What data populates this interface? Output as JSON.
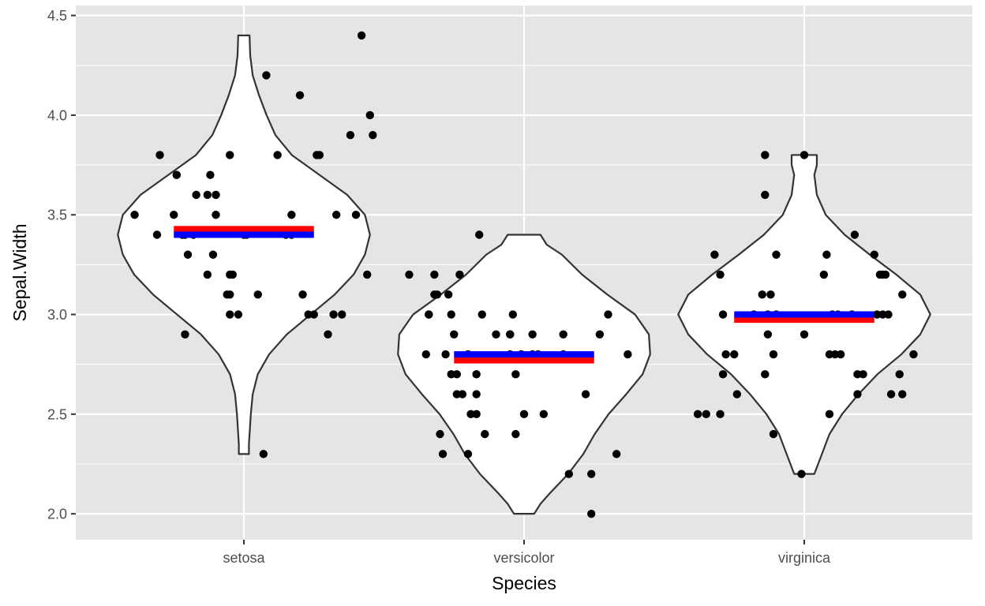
{
  "chart_data": {
    "type": "violin",
    "xlabel": "Species",
    "ylabel": "Sepal.Width",
    "categories": [
      "setosa",
      "versicolor",
      "virginica"
    ],
    "ylim": [
      1.87,
      4.55
    ],
    "yticks": [
      2.0,
      2.5,
      3.0,
      3.5,
      4.0,
      4.5
    ],
    "grid": true,
    "colors": {
      "panel": "#e5e5e5",
      "grid": "#ffffff",
      "violin_fill": "#ffffff",
      "violin_stroke": "#333333",
      "points": "#000000",
      "mean_line": "#ff0000",
      "median_line": "#0000ff"
    },
    "summary": {
      "mean": [
        3.428,
        2.77,
        2.974
      ],
      "median": [
        3.4,
        2.8,
        3.0
      ]
    },
    "violins": [
      {
        "category": "setosa",
        "range": [
          2.3,
          4.4
        ],
        "profile": [
          [
            2.3,
            0.04
          ],
          [
            2.35,
            0.04
          ],
          [
            2.4,
            0.045
          ],
          [
            2.5,
            0.055
          ],
          [
            2.6,
            0.07
          ],
          [
            2.7,
            0.11
          ],
          [
            2.8,
            0.2
          ],
          [
            2.9,
            0.34
          ],
          [
            3.0,
            0.53
          ],
          [
            3.1,
            0.72
          ],
          [
            3.2,
            0.87
          ],
          [
            3.3,
            0.96
          ],
          [
            3.4,
            1.0
          ],
          [
            3.5,
            0.96
          ],
          [
            3.6,
            0.82
          ],
          [
            3.7,
            0.6
          ],
          [
            3.8,
            0.38
          ],
          [
            3.9,
            0.25
          ],
          [
            4.0,
            0.18
          ],
          [
            4.1,
            0.12
          ],
          [
            4.2,
            0.07
          ],
          [
            4.3,
            0.05
          ],
          [
            4.4,
            0.045
          ]
        ]
      },
      {
        "category": "versicolor",
        "range": [
          2.0,
          3.4
        ],
        "profile": [
          [
            2.0,
            0.08
          ],
          [
            2.05,
            0.13
          ],
          [
            2.1,
            0.2
          ],
          [
            2.2,
            0.35
          ],
          [
            2.3,
            0.47
          ],
          [
            2.4,
            0.56
          ],
          [
            2.5,
            0.67
          ],
          [
            2.6,
            0.81
          ],
          [
            2.7,
            0.94
          ],
          [
            2.8,
            1.0
          ],
          [
            2.9,
            0.99
          ],
          [
            3.0,
            0.88
          ],
          [
            3.1,
            0.66
          ],
          [
            3.2,
            0.46
          ],
          [
            3.3,
            0.3
          ],
          [
            3.35,
            0.18
          ],
          [
            3.4,
            0.13
          ]
        ]
      },
      {
        "category": "virginica",
        "range": [
          2.2,
          3.8
        ],
        "profile": [
          [
            2.2,
            0.08
          ],
          [
            2.25,
            0.11
          ],
          [
            2.3,
            0.14
          ],
          [
            2.4,
            0.2
          ],
          [
            2.5,
            0.3
          ],
          [
            2.6,
            0.43
          ],
          [
            2.7,
            0.58
          ],
          [
            2.8,
            0.77
          ],
          [
            2.9,
            0.92
          ],
          [
            3.0,
            1.0
          ],
          [
            3.1,
            0.92
          ],
          [
            3.2,
            0.73
          ],
          [
            3.3,
            0.52
          ],
          [
            3.4,
            0.32
          ],
          [
            3.5,
            0.17
          ],
          [
            3.6,
            0.1
          ],
          [
            3.7,
            0.08
          ],
          [
            3.75,
            0.1
          ],
          [
            3.8,
            0.1
          ]
        ]
      }
    ],
    "points": [
      {
        "category": "setosa",
        "jitter": [
          -0.39,
          -0.31,
          -0.3,
          -0.25,
          -0.24,
          -0.24,
          -0.22,
          -0.21,
          -0.21,
          -0.2,
          -0.18,
          -0.17,
          -0.13,
          -0.13,
          -0.12,
          -0.11,
          -0.1,
          -0.1,
          -0.06,
          -0.05,
          -0.05,
          -0.05,
          -0.05,
          -0.04,
          -0.02,
          0.0,
          0.01,
          0.05,
          0.07,
          0.08,
          0.17,
          0.17,
          0.2,
          0.21,
          0.23,
          0.26,
          0.27,
          0.32,
          0.33,
          0.35,
          0.4,
          0.42,
          0.44,
          0.45,
          0.46,
          0.38,
          0.3,
          0.15,
          0.12,
          0.25
        ],
        "y": [
          3.5,
          3.4,
          3.8,
          3.5,
          3.7,
          3.7,
          3.4,
          2.9,
          3.4,
          3.3,
          3.4,
          3.6,
          3.2,
          3.6,
          3.7,
          3.3,
          3.6,
          3.5,
          3.1,
          3.0,
          3.2,
          3.1,
          3.8,
          3.2,
          3.0,
          3.4,
          3.4,
          3.1,
          2.3,
          4.2,
          3.4,
          3.5,
          4.1,
          3.1,
          3.0,
          3.8,
          3.8,
          3.0,
          3.5,
          3.0,
          3.5,
          4.4,
          3.2,
          4.0,
          3.9,
          3.9,
          2.9,
          3.4,
          3.8,
          3.0
        ]
      },
      {
        "category": "versicolor",
        "jitter": [
          -0.41,
          -0.35,
          -0.34,
          -0.34,
          -0.32,
          -0.32,
          -0.31,
          -0.3,
          -0.29,
          -0.28,
          -0.27,
          -0.26,
          -0.26,
          -0.25,
          -0.24,
          -0.24,
          -0.23,
          -0.22,
          -0.2,
          -0.2,
          -0.19,
          -0.17,
          -0.17,
          -0.17,
          -0.16,
          -0.15,
          -0.14,
          -0.1,
          -0.05,
          -0.05,
          -0.05,
          -0.04,
          -0.03,
          -0.03,
          -0.01,
          0.0,
          0.03,
          0.03,
          0.05,
          0.07,
          0.14,
          0.14,
          0.16,
          0.22,
          0.24,
          0.24,
          0.27,
          0.3,
          0.33,
          0.37
        ],
        "y": [
          3.2,
          2.8,
          3.0,
          3.0,
          3.2,
          3.1,
          3.1,
          2.4,
          2.3,
          2.8,
          3.1,
          2.7,
          3.0,
          2.9,
          2.6,
          2.7,
          3.2,
          2.6,
          2.3,
          2.8,
          2.5,
          2.6,
          2.5,
          2.7,
          3.4,
          3.0,
          2.4,
          2.9,
          2.9,
          2.8,
          2.9,
          3.0,
          2.4,
          2.7,
          2.8,
          2.5,
          2.8,
          2.9,
          2.8,
          2.5,
          2.8,
          2.9,
          2.2,
          2.6,
          2.2,
          2.0,
          2.9,
          3.0,
          2.3,
          2.8
        ]
      },
      {
        "category": "virginica",
        "jitter": [
          -0.35,
          -0.38,
          -0.32,
          -0.3,
          -0.3,
          -0.29,
          -0.29,
          -0.28,
          -0.25,
          -0.24,
          -0.18,
          -0.15,
          -0.14,
          -0.14,
          -0.14,
          -0.13,
          -0.13,
          -0.12,
          -0.11,
          -0.1,
          -0.11,
          -0.1,
          -0.01,
          0.0,
          0.08,
          0.09,
          0.09,
          0.1,
          0.11,
          0.12,
          0.13,
          0.18,
          0.19,
          0.19,
          0.21,
          0.25,
          0.26,
          0.27,
          0.28,
          0.28,
          0.29,
          0.3,
          0.31,
          0.34,
          0.35,
          0.35,
          0.39,
          0.0,
          0.07,
          0.17
        ],
        "y": [
          2.5,
          2.5,
          3.3,
          3.2,
          2.5,
          3.0,
          2.7,
          2.8,
          2.8,
          2.6,
          3.0,
          3.1,
          2.7,
          3.6,
          3.8,
          3.0,
          2.9,
          3.1,
          2.8,
          3.0,
          2.4,
          3.3,
          2.2,
          2.9,
          3.3,
          2.5,
          2.8,
          3.0,
          2.8,
          3.0,
          2.8,
          3.4,
          2.7,
          2.6,
          2.7,
          3.3,
          3.0,
          3.2,
          3.2,
          3.0,
          3.2,
          3.0,
          2.6,
          2.7,
          2.6,
          3.1,
          2.8,
          3.8,
          3.2,
          3.0
        ]
      }
    ]
  }
}
